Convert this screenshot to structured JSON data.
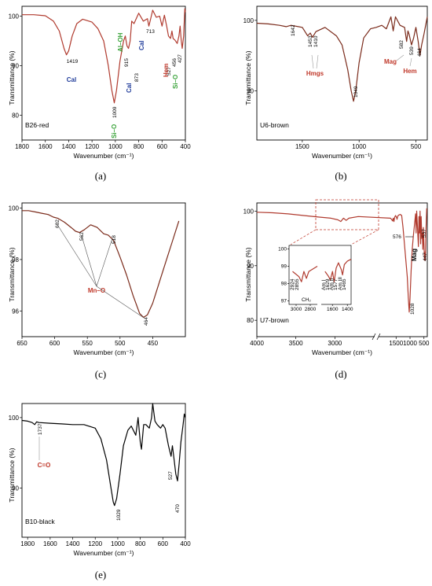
{
  "chart_data": [
    {
      "type": "line",
      "panel_label": "(a)",
      "sample": "B26-red",
      "xlabel": "Wavenumber (cm⁻¹)",
      "ylabel": "Transmittance (%)",
      "xlim": [
        1800,
        400
      ],
      "ylim": [
        75,
        102
      ],
      "xticks": [
        1800,
        1600,
        1400,
        1200,
        1000,
        800,
        600,
        400
      ],
      "yticks": [
        80,
        90,
        100
      ],
      "line_color": "#b03a2e",
      "series": [
        {
          "x": [
            1800,
            1700,
            1600,
            1530,
            1480,
            1440,
            1419,
            1400,
            1370,
            1330,
            1280,
            1200,
            1150,
            1100,
            1060,
            1030,
            1009,
            990,
            960,
            930,
            915,
            900,
            887,
            873,
            860,
            840,
            800,
            760,
            725,
            713,
            700,
            680,
            650,
            620,
            600,
            580,
            560,
            545,
            527,
            515,
            505,
            490,
            470,
            455,
            445,
            435,
            427,
            415,
            405,
            400
          ],
          "y": [
            100.3,
            100.3,
            100.1,
            99,
            97,
            93.5,
            92.2,
            93,
            96,
            98.5,
            99.4,
            98.8,
            97.5,
            95,
            90,
            85,
            82.5,
            85,
            91,
            95,
            96,
            94,
            93.5,
            95,
            99,
            98.5,
            100.6,
            99,
            99.5,
            98,
            99.2,
            101.2,
            99.8,
            100,
            98,
            100.2,
            98,
            96,
            95.5,
            97,
            95.5,
            95.2,
            94.5,
            96,
            98,
            95,
            93.5,
            96,
            101.5,
            100.8
          ]
        }
      ],
      "annotations": [
        {
          "text": "Cal",
          "color": "#1f3b9a"
        },
        {
          "text": "Al–OH",
          "color": "#3aa33a"
        },
        {
          "text": "Cal",
          "color": "#1f3b9a"
        },
        {
          "text": "Cal",
          "color": "#1f3b9a"
        },
        {
          "text": "Hem",
          "color": "#c0392b"
        },
        {
          "text": "Si–O",
          "color": "#3aa33a"
        },
        {
          "text": "Si–O",
          "color": "#3aa33a"
        }
      ],
      "peak_labels": [
        "1419",
        "1009",
        "915",
        "873",
        "713",
        "527",
        "456",
        "427"
      ]
    },
    {
      "type": "line",
      "panel_label": "(b)",
      "sample": "U6-brown",
      "xlabel": "Wavenumber (cm⁻¹)",
      "ylabel": "Transmittance (%)",
      "xlim": [
        1900,
        400
      ],
      "ylim": [
        83,
        102
      ],
      "xticks": [
        1500,
        1000,
        500
      ],
      "yticks": [
        90,
        100
      ],
      "line_color": "#7a2a1a",
      "series": [
        {
          "x": [
            1900,
            1800,
            1700,
            1642,
            1600,
            1500,
            1453,
            1430,
            1410,
            1380,
            1300,
            1200,
            1150,
            1100,
            1070,
            1049,
            1030,
            1000,
            960,
            900,
            850,
            800,
            760,
            720,
            700,
            680,
            640,
            600,
            582,
            570,
            560,
            539,
            520,
            500,
            480,
            464,
            450,
            430,
            400
          ],
          "y": [
            99.6,
            99.5,
            99.3,
            99.1,
            99.3,
            99,
            97.8,
            98.2,
            97.6,
            98.4,
            99,
            97.8,
            96.5,
            93,
            90,
            88.5,
            90,
            94,
            97.5,
            98.8,
            99,
            99.3,
            98.8,
            100.5,
            98.5,
            100.5,
            99.3,
            99,
            97,
            98.5,
            98,
            96.5,
            97.5,
            99,
            97,
            95,
            96.5,
            98,
            100.5
          ]
        }
      ],
      "annotations": [
        {
          "text": "Hmgs",
          "color": "#c0392b"
        },
        {
          "text": "Mag",
          "color": "#c0392b"
        },
        {
          "text": "Hem",
          "color": "#c0392b"
        }
      ],
      "peak_labels": [
        "1642",
        "1453",
        "1410",
        "1049",
        "582",
        "539",
        "464"
      ]
    },
    {
      "type": "line",
      "panel_label": "(c)",
      "sample": "B4-brown",
      "xlabel": "Wavenumber (cm⁻¹)",
      "ylabel": "Transmittance (%)",
      "xlim": [
        650,
        400
      ],
      "ylim": [
        95,
        100.2
      ],
      "xticks": [
        650,
        600,
        550,
        500,
        450
      ],
      "yticks": [
        96,
        98,
        100
      ],
      "line_color": "#7a2a1a",
      "series": [
        {
          "x": [
            650,
            640,
            630,
            620,
            610,
            602,
            595,
            585,
            575,
            568,
            562,
            555,
            545,
            535,
            525,
            518,
            510,
            500,
            490,
            480,
            470,
            464,
            458,
            450,
            440,
            430,
            420,
            410
          ],
          "y": [
            99.9,
            99.9,
            99.85,
            99.8,
            99.75,
            99.65,
            99.6,
            99.45,
            99.25,
            99.1,
            99.05,
            99.15,
            99.35,
            99.25,
            99,
            98.95,
            98.75,
            98.1,
            97.4,
            96.6,
            95.9,
            95.75,
            95.85,
            96.3,
            97.1,
            97.9,
            98.7,
            99.5
          ]
        }
      ],
      "annotations": [
        {
          "text": "Mn–O",
          "color": "#c0392b"
        }
      ],
      "peak_labels": [
        "602",
        "562",
        "518",
        "464"
      ]
    },
    {
      "type": "line",
      "panel_label": "(d)",
      "sample": "U7-brown",
      "xlabel": "Wavenumber (cm⁻¹)",
      "ylabel": "Transmittance (%)",
      "x_axis_break": true,
      "ylim": [
        77,
        101.5
      ],
      "xticks": [
        4000,
        3500,
        3000,
        1500,
        1000,
        500
      ],
      "yticks": [
        80,
        90,
        100
      ],
      "line_color": "#b03a2e",
      "series": [
        {
          "x": [
            4000,
            3800,
            3600,
            3400,
            3200,
            3050,
            2960,
            2924,
            2890,
            2855,
            2820,
            2700,
            1700,
            1650,
            1629,
            1600,
            1577,
            1550,
            1520,
            1480,
            1465,
            1440,
            1400,
            1350,
            1300,
            1250,
            1200,
            1150,
            1100,
            1060,
            1028,
            1000,
            960,
            920,
            880,
            840,
            800,
            780,
            760,
            700,
            680,
            660,
            640,
            620,
            600,
            576,
            560,
            537,
            520,
            500,
            480,
            460,
            447,
            430,
            400
          ],
          "y": [
            99.8,
            99.7,
            99.5,
            99.2,
            98.9,
            98.7,
            98.4,
            98.1,
            98.7,
            98.3,
            98.7,
            99,
            98.7,
            98.4,
            98.2,
            98.7,
            98.1,
            98.9,
            99.2,
            98.8,
            98.5,
            99.1,
            99.3,
            99.4,
            99.2,
            97,
            94,
            91,
            88,
            84,
            81.5,
            84,
            89,
            93,
            95.5,
            97.5,
            99.5,
            96,
            100,
            93.5,
            99,
            96,
            100,
            94,
            99,
            95,
            96,
            93,
            97,
            94,
            91,
            92.5,
            91,
            96,
            100.5
          ]
        }
      ],
      "inset": {
        "xticks": [
          3000,
          2800,
          1600,
          1400
        ],
        "yticks": [
          97,
          98,
          99,
          100
        ],
        "labels": [
          "2924",
          "2855"
        ],
        "red_labels": [
          "CH₂",
          "Am I",
          "1629",
          "Am II",
          "1577",
          "Am III",
          "1465"
        ]
      },
      "annotations": [
        {
          "text": "Mag",
          "color": "#000000"
        }
      ],
      "peak_labels": [
        "1028",
        "576",
        "537",
        "447"
      ]
    },
    {
      "type": "line",
      "panel_label": "(e)",
      "sample": "B10-black",
      "xlabel": "Wavenumber (cm⁻¹)",
      "ylabel": "Transmittance (%)",
      "xlim": [
        1850,
        400
      ],
      "ylim": [
        83,
        102
      ],
      "xticks": [
        1800,
        1600,
        1400,
        1200,
        1000,
        800,
        600,
        400
      ],
      "yticks": [
        90,
        100
      ],
      "line_color": "#000000",
      "series": [
        {
          "x": [
            1850,
            1800,
            1760,
            1737,
            1720,
            1700,
            1600,
            1500,
            1400,
            1300,
            1200,
            1150,
            1100,
            1060,
            1040,
            1029,
            1010,
            980,
            950,
            910,
            880,
            840,
            820,
            800,
            790,
            770,
            750,
            720,
            700,
            690,
            670,
            650,
            620,
            600,
            580,
            550,
            527,
            515,
            500,
            485,
            470,
            455,
            440,
            420,
            410,
            400
          ],
          "y": [
            99.6,
            99.5,
            99.3,
            99,
            99.4,
            99.3,
            99.2,
            99.1,
            99,
            99,
            98.5,
            97,
            94,
            90,
            88,
            87.5,
            88.5,
            92,
            96,
            98.2,
            98.8,
            97.5,
            100,
            96.5,
            95.5,
            99,
            99,
            98.5,
            100,
            103,
            99.5,
            99,
            98.5,
            99,
            98.5,
            96,
            94.5,
            96,
            94,
            92,
            91,
            93.5,
            96.5,
            99,
            100.5,
            100
          ]
        }
      ],
      "annotations": [
        {
          "text": "C=O",
          "color": "#c0392b"
        }
      ],
      "peak_labels": [
        "1737",
        "1029",
        "527",
        "470"
      ]
    }
  ]
}
